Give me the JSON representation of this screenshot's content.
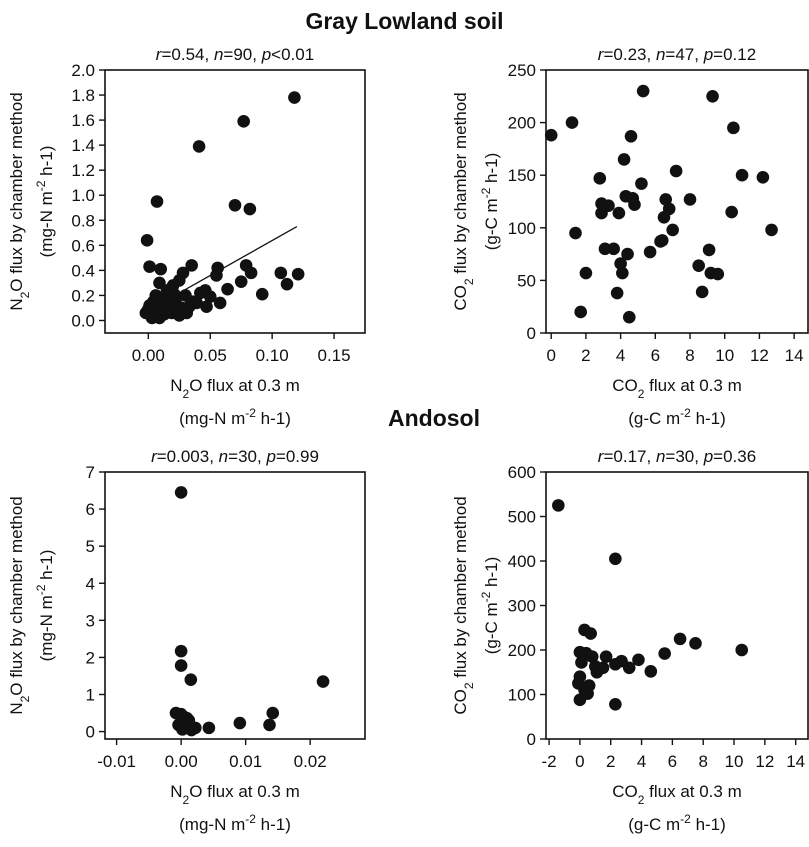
{
  "sections": {
    "top_title": "Gray Lowland soil",
    "bottom_title": "Andosol"
  },
  "colors": {
    "marker": "#111111",
    "axis": "#111111",
    "background": "#ffffff"
  },
  "chart_data": [
    {
      "id": "n2o_gray_lowland",
      "type": "scatter",
      "title": "r=0.54, n=90, p<0.01",
      "stat": {
        "r": "0.54",
        "n": "90",
        "p_op": "<",
        "p": "0.01"
      },
      "xlabel": {
        "line1": "N2O flux at 0.3 m",
        "line2": "(mg-N m-2 h-1)"
      },
      "ylabel": {
        "line1": "N2O flux by chamber method",
        "line2": "(mg-N m-2 h-1)"
      },
      "xlim": [
        -0.035,
        0.175
      ],
      "ylim": [
        -0.1,
        2.0
      ],
      "xticks": [
        "0.00",
        "0.05",
        "0.10",
        "0.15"
      ],
      "xtick_values": [
        0,
        0.05,
        0.1,
        0.15
      ],
      "yticks": [
        "0.0",
        "0.2",
        "0.4",
        "0.6",
        "0.8",
        "1.0",
        "1.2",
        "1.4",
        "1.6",
        "1.8",
        "2.0"
      ],
      "ytick_values": [
        0,
        0.2,
        0.4,
        0.6,
        0.8,
        1.0,
        1.2,
        1.4,
        1.6,
        1.8,
        2.0
      ],
      "regression": {
        "x": [
          0.0,
          0.12
        ],
        "y": [
          0.08,
          0.75
        ]
      },
      "points": [
        [
          0.118,
          1.78
        ],
        [
          0.077,
          1.59
        ],
        [
          0.041,
          1.39
        ],
        [
          0.07,
          0.92
        ],
        [
          0.082,
          0.89
        ],
        [
          0.007,
          0.95
        ],
        [
          -0.001,
          0.64
        ],
        [
          0.01,
          0.41
        ],
        [
          0.001,
          0.43
        ],
        [
          0.035,
          0.44
        ],
        [
          0.056,
          0.42
        ],
        [
          0.079,
          0.44
        ],
        [
          0.083,
          0.38
        ],
        [
          0.107,
          0.38
        ],
        [
          0.121,
          0.37
        ],
        [
          0.028,
          0.38
        ],
        [
          0.055,
          0.36
        ],
        [
          0.075,
          0.31
        ],
        [
          0.064,
          0.25
        ],
        [
          0.046,
          0.24
        ],
        [
          0.112,
          0.29
        ],
        [
          0.092,
          0.21
        ],
        [
          0.009,
          0.3
        ],
        [
          0.02,
          0.28
        ],
        [
          0.025,
          0.32
        ],
        [
          0.015,
          0.24
        ],
        [
          0.021,
          0.21
        ],
        [
          0.03,
          0.2
        ],
        [
          0.036,
          0.15
        ],
        [
          0.042,
          0.22
        ],
        [
          0.05,
          0.19
        ],
        [
          0.058,
          0.14
        ],
        [
          0.047,
          0.11
        ],
        [
          0.039,
          0.14
        ],
        [
          0.033,
          0.11
        ],
        [
          0.027,
          0.1
        ],
        [
          0.018,
          0.13
        ],
        [
          0.012,
          0.16
        ],
        [
          0.006,
          0.2
        ],
        [
          0.004,
          0.15
        ],
        [
          0.001,
          0.12
        ],
        [
          0.0,
          0.09
        ],
        [
          -0.002,
          0.06
        ],
        [
          0.003,
          0.05
        ],
        [
          0.008,
          0.08
        ],
        [
          0.013,
          0.05
        ],
        [
          0.019,
          0.06
        ],
        [
          0.025,
          0.04
        ],
        [
          0.031,
          0.06
        ],
        [
          0.003,
          0.02
        ],
        [
          0.009,
          0.02
        ],
        [
          0.015,
          0.1
        ],
        [
          0.022,
          0.15
        ],
        [
          0.017,
          0.19
        ],
        [
          0.011,
          0.11
        ],
        [
          0.005,
          0.1
        ],
        [
          0.006,
          0.03
        ]
      ]
    },
    {
      "id": "co2_gray_lowland",
      "type": "scatter",
      "title": "r=0.23, n=47, p=0.12",
      "stat": {
        "r": "0.23",
        "n": "47",
        "p_op": "=",
        "p": "0.12"
      },
      "xlabel": {
        "line1": "CO2 flux at 0.3 m",
        "line2": "(g-C m-2 h-1)"
      },
      "ylabel": {
        "line1": "CO2 flux by chamber method",
        "line2": "(g-C m-2 h-1)"
      },
      "xlim": [
        -0.3,
        14.8
      ],
      "ylim": [
        0,
        250
      ],
      "xticks": [
        "0",
        "2",
        "4",
        "6",
        "8",
        "10",
        "12",
        "14"
      ],
      "xtick_values": [
        0,
        2,
        4,
        6,
        8,
        10,
        12,
        14
      ],
      "yticks": [
        "0",
        "50",
        "100",
        "150",
        "200",
        "250"
      ],
      "ytick_values": [
        0,
        50,
        100,
        150,
        200,
        250
      ],
      "points": [
        [
          0.0,
          188
        ],
        [
          1.2,
          200
        ],
        [
          1.4,
          95
        ],
        [
          2.0,
          57
        ],
        [
          1.7,
          20
        ],
        [
          2.8,
          147
        ],
        [
          2.9,
          123
        ],
        [
          2.9,
          114
        ],
        [
          3.1,
          80
        ],
        [
          3.3,
          121
        ],
        [
          3.6,
          80
        ],
        [
          3.9,
          114
        ],
        [
          3.8,
          38
        ],
        [
          4.1,
          57
        ],
        [
          4.0,
          66
        ],
        [
          4.2,
          165
        ],
        [
          4.3,
          130
        ],
        [
          4.4,
          75
        ],
        [
          4.5,
          15
        ],
        [
          4.6,
          187
        ],
        [
          4.7,
          128
        ],
        [
          4.8,
          122
        ],
        [
          5.2,
          142
        ],
        [
          5.3,
          230
        ],
        [
          5.7,
          77
        ],
        [
          6.4,
          88
        ],
        [
          6.5,
          110
        ],
        [
          6.6,
          127
        ],
        [
          6.8,
          118
        ],
        [
          7.0,
          98
        ],
        [
          7.2,
          154
        ],
        [
          8.0,
          127
        ],
        [
          8.5,
          64
        ],
        [
          8.7,
          39
        ],
        [
          9.1,
          79
        ],
        [
          9.2,
          57
        ],
        [
          9.3,
          225
        ],
        [
          9.6,
          56
        ],
        [
          10.4,
          115
        ],
        [
          10.5,
          195
        ],
        [
          11.0,
          150
        ],
        [
          12.2,
          148
        ],
        [
          12.7,
          98
        ],
        [
          6.3,
          87
        ]
      ]
    },
    {
      "id": "n2o_andosol",
      "type": "scatter",
      "title": "r=0.003, n=30, p=0.99",
      "stat": {
        "r": "0.003",
        "n": "30",
        "p_op": "=",
        "p": "0.99"
      },
      "xlabel": {
        "line1": "N2O flux at 0.3 m",
        "line2": "(mg-N m-2 h-1)"
      },
      "ylabel": {
        "line1": "N2O flux by chamber method",
        "line2": "(mg-N m-2 h-1)"
      },
      "xlim": [
        -0.0118,
        0.0285
      ],
      "ylim": [
        -0.2,
        7.0
      ],
      "xticks": [
        "-0.01",
        "0.00",
        "0.01",
        "0.02"
      ],
      "xtick_values": [
        -0.01,
        0,
        0.01,
        0.02
      ],
      "yticks": [
        "0",
        "1",
        "2",
        "3",
        "4",
        "5",
        "6",
        "7"
      ],
      "ytick_values": [
        0,
        1,
        2,
        3,
        4,
        5,
        6,
        7
      ],
      "points": [
        [
          0.0,
          6.45
        ],
        [
          0.0,
          2.17
        ],
        [
          0.0,
          1.78
        ],
        [
          0.0015,
          1.4
        ],
        [
          0.022,
          1.35
        ],
        [
          -0.0008,
          0.5
        ],
        [
          0.0,
          0.47
        ],
        [
          0.0004,
          0.4
        ],
        [
          0.0009,
          0.36
        ],
        [
          0.0012,
          0.3
        ],
        [
          0.0006,
          0.22
        ],
        [
          -0.0004,
          0.18
        ],
        [
          0.0003,
          0.14
        ],
        [
          0.0008,
          0.12
        ],
        [
          0.0013,
          0.1
        ],
        [
          0.0018,
          0.08
        ],
        [
          0.0022,
          0.1
        ],
        [
          0.0043,
          0.1
        ],
        [
          0.0091,
          0.23
        ],
        [
          0.0137,
          0.18
        ],
        [
          0.0142,
          0.5
        ],
        [
          0.0002,
          0.06
        ],
        [
          0.0016,
          0.04
        ]
      ]
    },
    {
      "id": "co2_andosol",
      "type": "scatter",
      "title": "r=0.17, n=30, p=0.36",
      "stat": {
        "r": "0.17",
        "n": "30",
        "p_op": "=",
        "p": "0.36"
      },
      "xlabel": {
        "line1": "CO2 flux at 0.3 m",
        "line2": "(g-C m-2 h-1)"
      },
      "ylabel": {
        "line1": "CO2 flux by chamber method",
        "line2": "(g-C m-2 h-1)"
      },
      "xlim": [
        -2.2,
        14.8
      ],
      "ylim": [
        0,
        600
      ],
      "xticks": [
        "-2",
        "0",
        "2",
        "4",
        "6",
        "8",
        "10",
        "12",
        "14"
      ],
      "xtick_values": [
        -2,
        0,
        2,
        4,
        6,
        8,
        10,
        12,
        14
      ],
      "yticks": [
        "0",
        "100",
        "200",
        "300",
        "400",
        "500",
        "600"
      ],
      "ytick_values": [
        0,
        100,
        200,
        300,
        400,
        500,
        600
      ],
      "points": [
        [
          -1.4,
          525
        ],
        [
          2.3,
          405
        ],
        [
          0.3,
          245
        ],
        [
          0.7,
          237
        ],
        [
          6.5,
          225
        ],
        [
          7.5,
          215
        ],
        [
          10.5,
          200
        ],
        [
          0.0,
          195
        ],
        [
          0.4,
          193
        ],
        [
          0.1,
          172
        ],
        [
          0.0,
          140
        ],
        [
          -0.1,
          125
        ],
        [
          0.3,
          110
        ],
        [
          0.0,
          88
        ],
        [
          0.6,
          120
        ],
        [
          1.0,
          163
        ],
        [
          1.1,
          150
        ],
        [
          1.7,
          185
        ],
        [
          2.3,
          168
        ],
        [
          2.7,
          175
        ],
        [
          3.2,
          160
        ],
        [
          3.8,
          178
        ],
        [
          4.6,
          152
        ],
        [
          5.5,
          192
        ],
        [
          2.3,
          78
        ],
        [
          0.5,
          102
        ],
        [
          0.8,
          185
        ],
        [
          1.5,
          160
        ]
      ]
    }
  ]
}
